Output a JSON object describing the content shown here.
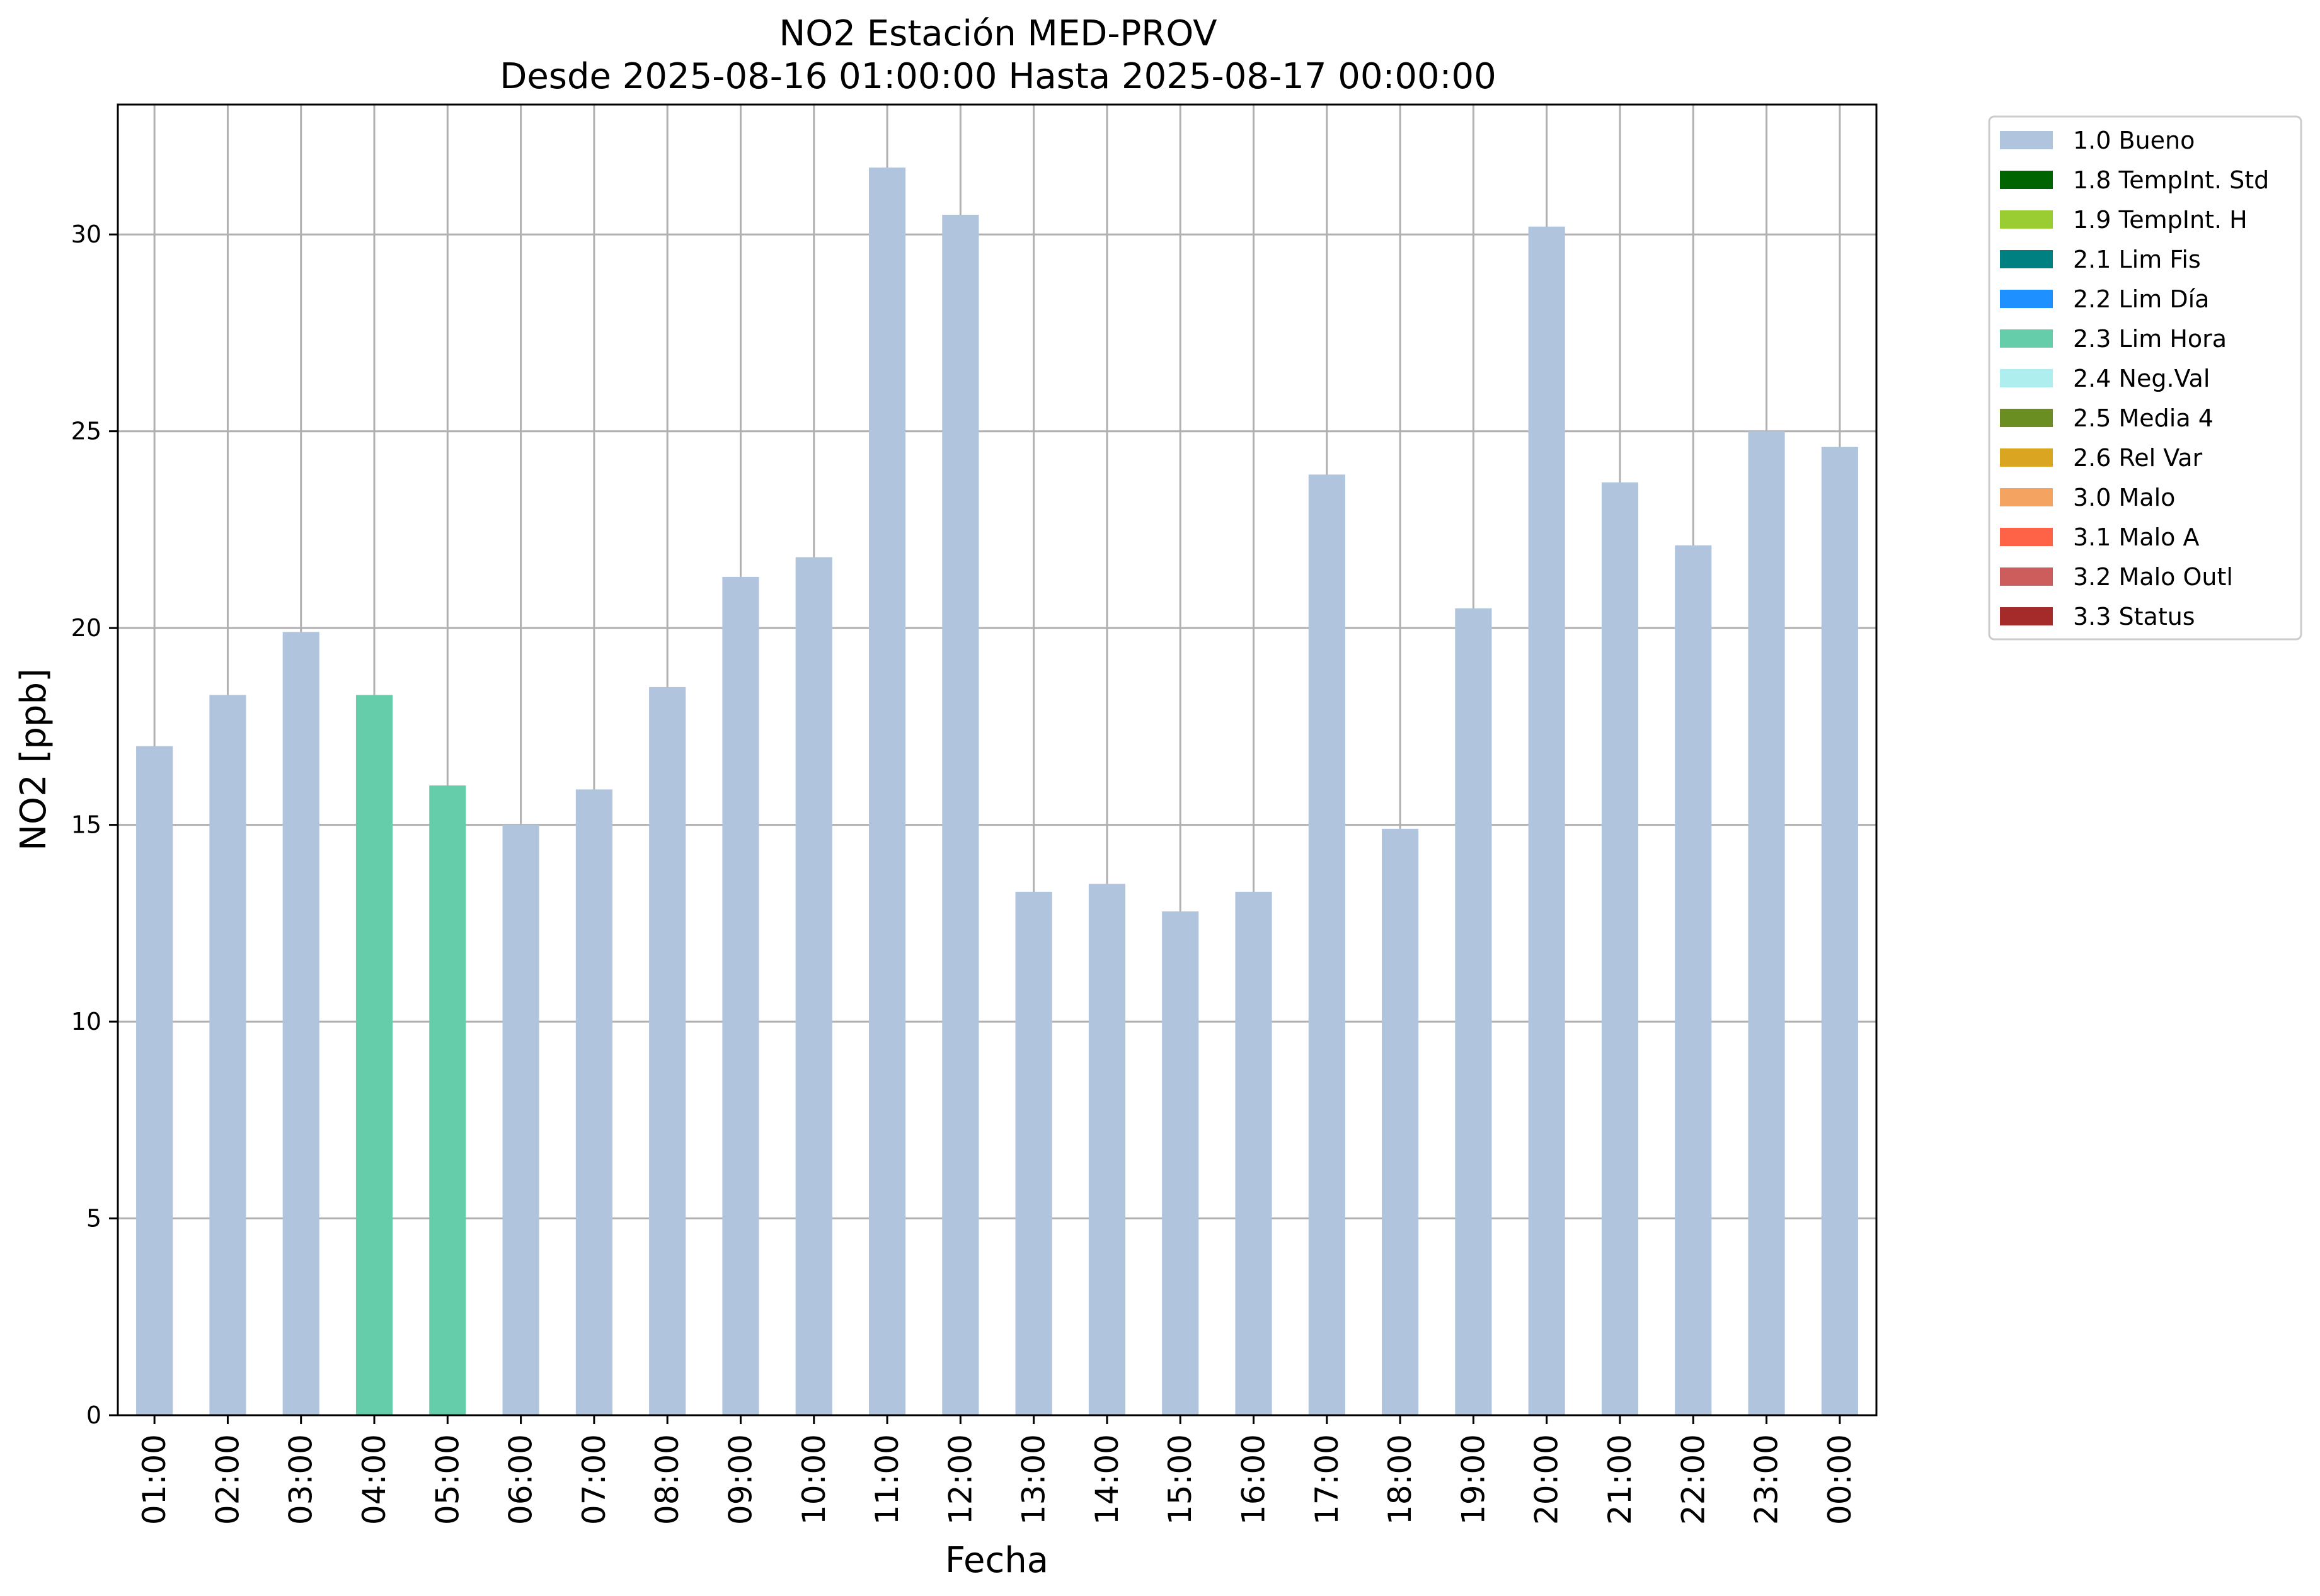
{
  "chart_data": {
    "type": "bar",
    "title": "NO2 Estación MED-PROV",
    "subtitle": "Desde 2025-08-16 01:00:00 Hasta 2025-08-17 00:00:00",
    "xlabel": "Fecha",
    "ylabel": "NO2 [ppb]",
    "ylim": [
      0,
      33.3
    ],
    "yticks": [
      "0",
      "5",
      "10",
      "15",
      "20",
      "25",
      "30"
    ],
    "grid": true,
    "legend_position": "outside-top-right",
    "categories": [
      "01:00",
      "02:00",
      "03:00",
      "04:00",
      "05:00",
      "06:00",
      "07:00",
      "08:00",
      "09:00",
      "10:00",
      "11:00",
      "12:00",
      "13:00",
      "14:00",
      "15:00",
      "16:00",
      "17:00",
      "18:00",
      "19:00",
      "20:00",
      "21:00",
      "22:00",
      "23:00",
      "00:00"
    ],
    "values": [
      17.0,
      18.3,
      19.9,
      18.3,
      16.0,
      15.0,
      15.9,
      18.5,
      21.3,
      21.8,
      31.7,
      30.5,
      13.3,
      13.5,
      12.8,
      13.3,
      23.9,
      14.9,
      20.5,
      30.2,
      23.7,
      22.1,
      25.0,
      24.6
    ],
    "flags": [
      "1.0 Bueno",
      "1.0 Bueno",
      "1.0 Bueno",
      "2.3 Lim Hora",
      "2.3 Lim Hora",
      "1.0 Bueno",
      "1.0 Bueno",
      "1.0 Bueno",
      "1.0 Bueno",
      "1.0 Bueno",
      "1.0 Bueno",
      "1.0 Bueno",
      "1.0 Bueno",
      "1.0 Bueno",
      "1.0 Bueno",
      "1.0 Bueno",
      "1.0 Bueno",
      "1.0 Bueno",
      "1.0 Bueno",
      "1.0 Bueno",
      "1.0 Bueno",
      "1.0 Bueno",
      "1.0 Bueno",
      "1.0 Bueno"
    ],
    "legend": [
      {
        "label": "1.0 Bueno",
        "color": "#b0c4de"
      },
      {
        "label": "1.8 TempInt. Std",
        "color": "#006400"
      },
      {
        "label": "1.9 TempInt. H",
        "color": "#9acd32"
      },
      {
        "label": "2.1 Lim Fis",
        "color": "#008080"
      },
      {
        "label": "2.2 Lim Día",
        "color": "#1e90ff"
      },
      {
        "label": "2.3 Lim Hora",
        "color": "#66cdaa"
      },
      {
        "label": "2.4 Neg.Val",
        "color": "#afeeee"
      },
      {
        "label": "2.5 Media 4",
        "color": "#6b8e23"
      },
      {
        "label": "2.6 Rel Var",
        "color": "#daa520"
      },
      {
        "label": "3.0 Malo",
        "color": "#f4a460"
      },
      {
        "label": "3.1 Malo A",
        "color": "#ff6347"
      },
      {
        "label": "3.2 Malo Outl",
        "color": "#cd5c5c"
      },
      {
        "label": "3.3 Status",
        "color": "#a52a2a"
      }
    ]
  }
}
